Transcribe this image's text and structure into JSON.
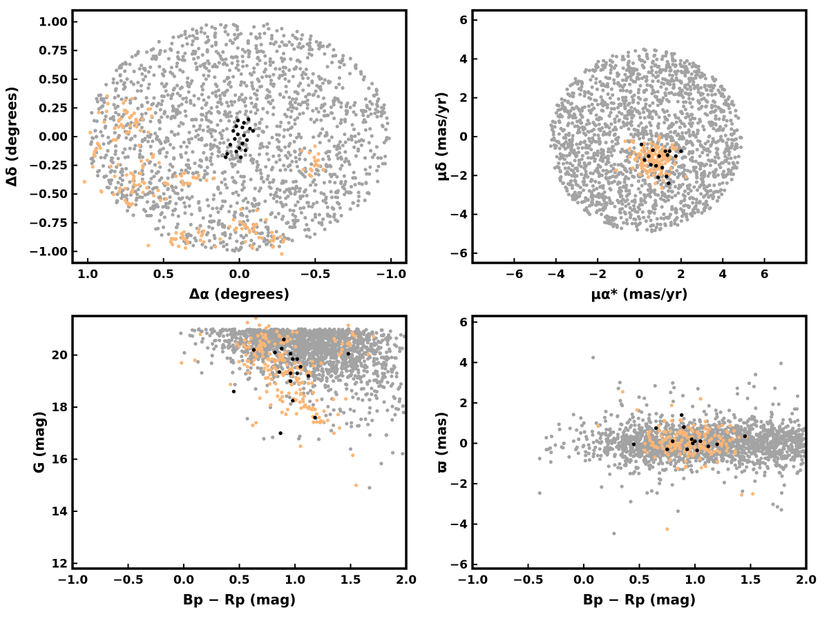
{
  "colors": {
    "field": "#a3a3a3",
    "members": "#fdb676",
    "cluster": "#000000"
  },
  "chart_data": [
    {
      "id": "sky",
      "type": "scatter",
      "xlabel": "Δα (degrees)",
      "ylabel": "Δδ (degrees)",
      "xlim": [
        1.1,
        -1.1
      ],
      "ylim": [
        -1.1,
        1.1
      ],
      "xticks": [
        1.0,
        0.5,
        0.0,
        -0.5,
        -1.0
      ],
      "yticks": [
        -1.0,
        -0.75,
        -0.5,
        -0.25,
        0.0,
        0.25,
        0.5,
        0.75,
        1.0
      ],
      "xtick_labels": [
        "1.0",
        "0.5",
        "0.0",
        "−0.5",
        "−1.0"
      ],
      "ytick_labels": [
        "−1.00",
        "−0.75",
        "−0.50",
        "−0.25",
        "0.00",
        "0.25",
        "0.50",
        "0.75",
        "1.00"
      ],
      "field": {
        "n": 1700,
        "shape": "disk",
        "center": [
          0.0,
          0.0
        ],
        "radius": [
          1.0,
          1.0
        ]
      },
      "members": {
        "n": 190,
        "clumps": [
          {
            "center": [
              0.72,
              0.17
            ],
            "sd": [
              0.1,
              0.09
            ],
            "n": 35
          },
          {
            "center": [
              0.93,
              -0.08
            ],
            "sd": [
              0.03,
              0.1
            ],
            "n": 10
          },
          {
            "center": [
              0.7,
              -0.38
            ],
            "sd": [
              0.1,
              0.15
            ],
            "n": 45
          },
          {
            "center": [
              0.35,
              -0.38
            ],
            "sd": [
              0.1,
              0.06
            ],
            "n": 20
          },
          {
            "center": [
              0.35,
              -0.88
            ],
            "sd": [
              0.08,
              0.05
            ],
            "n": 25
          },
          {
            "center": [
              -0.05,
              -0.83
            ],
            "sd": [
              0.08,
              0.07
            ],
            "n": 25
          },
          {
            "center": [
              -0.2,
              -0.92
            ],
            "sd": [
              0.06,
              0.04
            ],
            "n": 12
          },
          {
            "center": [
              -0.48,
              -0.18
            ],
            "sd": [
              0.04,
              0.1
            ],
            "n": 18
          }
        ]
      },
      "cluster": {
        "points": [
          [
            0.01,
            0.14
          ],
          [
            -0.03,
            0.12
          ],
          [
            -0.06,
            0.15
          ],
          [
            0.02,
            0.09
          ],
          [
            -0.02,
            0.08
          ],
          [
            -0.07,
            0.07
          ],
          [
            -0.09,
            0.05
          ],
          [
            0.04,
            0.05
          ],
          [
            0.01,
            0.02
          ],
          [
            -0.03,
            0.01
          ],
          [
            -0.05,
            -0.03
          ],
          [
            0.03,
            -0.02
          ],
          [
            0.06,
            -0.07
          ],
          [
            0.0,
            -0.1
          ],
          [
            -0.04,
            -0.12
          ],
          [
            0.08,
            -0.15
          ],
          [
            0.09,
            -0.18
          ],
          [
            -0.02,
            -0.06
          ],
          [
            0.02,
            -0.13
          ],
          [
            -0.01,
            -0.18
          ]
        ]
      }
    },
    {
      "id": "pm",
      "type": "scatter",
      "xlabel": "μα* (mas/yr)",
      "ylabel": "μδ (mas/yr)",
      "xlim": [
        -8,
        8
      ],
      "ylim": [
        -6.5,
        6.5
      ],
      "xticks": [
        -6,
        -4,
        -2,
        0,
        2,
        4,
        6
      ],
      "yticks": [
        -6,
        -4,
        -2,
        0,
        2,
        4,
        6
      ],
      "xtick_labels": [
        "−6",
        "−4",
        "−2",
        "0",
        "2",
        "4",
        "6"
      ],
      "ytick_labels": [
        "−6",
        "−4",
        "−2",
        "0",
        "2",
        "4",
        "6"
      ],
      "field": {
        "n": 1800,
        "shape": "disk",
        "center": [
          0.3,
          -0.2
        ],
        "radius": [
          4.6,
          4.7
        ],
        "clip": [
          null,
          5.0,
          -4.95,
          null
        ]
      },
      "members": {
        "n": 140,
        "clumps": [
          {
            "center": [
              0.8,
              -1.2
            ],
            "sd": [
              0.55,
              0.55
            ],
            "n": 140
          }
        ]
      },
      "cluster": {
        "points": [
          [
            0.1,
            -0.4
          ],
          [
            0.65,
            -0.7
          ],
          [
            1.25,
            -0.75
          ],
          [
            1.45,
            -0.75
          ],
          [
            1.35,
            -0.95
          ],
          [
            2.0,
            -0.75
          ],
          [
            0.25,
            -1.2
          ],
          [
            1.75,
            -1.0
          ],
          [
            0.55,
            -1.45
          ],
          [
            0.8,
            -1.5
          ],
          [
            1.1,
            -1.6
          ],
          [
            1.3,
            -2.05
          ],
          [
            0.9,
            -2.1
          ],
          [
            1.4,
            -2.4
          ],
          [
            0.45,
            -1.0
          ],
          [
            0.95,
            -1.0
          ]
        ]
      }
    },
    {
      "id": "cmd",
      "type": "scatter",
      "xlabel": "Bp − Rp (mag)",
      "ylabel": "G (mag)",
      "xlim": [
        -1.0,
        2.0
      ],
      "ylim": [
        11.8,
        21.5
      ],
      "y_inverted": false,
      "xticks": [
        -1.0,
        -0.5,
        0.0,
        0.5,
        1.0,
        1.5,
        2.0
      ],
      "yticks": [
        12,
        14,
        16,
        18,
        20
      ],
      "xtick_labels": [
        "−1.0",
        "−0.5",
        "0.0",
        "0.5",
        "1.0",
        "1.5",
        "2.0"
      ],
      "ytick_labels": [
        "12",
        "14",
        "16",
        "18",
        "20"
      ],
      "field": {
        "n": 1800,
        "shape": "cmd",
        "clip": [
          null,
          2.05,
          null,
          21.0
        ]
      },
      "members": {
        "n": 190,
        "clumps": [
          {
            "center": [
              0.75,
              20.2
            ],
            "sd": [
              0.14,
              0.45
            ],
            "n": 80
          },
          {
            "center": [
              1.0,
              19.0
            ],
            "sd": [
              0.14,
              0.6
            ],
            "n": 70
          },
          {
            "center": [
              1.15,
              17.8
            ],
            "sd": [
              0.12,
              0.5
            ],
            "n": 25
          },
          {
            "center": [
              1.45,
              20.5
            ],
            "sd": [
              0.12,
              0.3
            ],
            "n": 15
          }
        ],
        "extra": [
          [
            1.55,
            15.0
          ],
          [
            1.52,
            16.15
          ],
          [
            1.35,
            17.0
          ],
          [
            1.4,
            17.2
          ],
          [
            1.05,
            16.5
          ],
          [
            0.65,
            17.4
          ],
          [
            0.62,
            17.3
          ],
          [
            0.1,
            19.8
          ],
          [
            0.15,
            20.8
          ],
          [
            -0.02,
            19.7
          ]
        ]
      },
      "cluster": {
        "points": [
          [
            0.45,
            18.6
          ],
          [
            0.63,
            20.2
          ],
          [
            0.82,
            20.1
          ],
          [
            0.88,
            20.25
          ],
          [
            0.9,
            20.6
          ],
          [
            0.96,
            20.05
          ],
          [
            0.98,
            19.85
          ],
          [
            1.02,
            19.85
          ],
          [
            1.05,
            19.55
          ],
          [
            0.86,
            19.35
          ],
          [
            0.96,
            19.3
          ],
          [
            1.02,
            19.3
          ],
          [
            1.12,
            19.2
          ],
          [
            0.96,
            19.0
          ],
          [
            0.98,
            18.25
          ],
          [
            1.18,
            17.6
          ],
          [
            0.87,
            17.0
          ],
          [
            1.48,
            20.05
          ]
        ]
      }
    },
    {
      "id": "parallax",
      "type": "scatter",
      "xlabel": "Bp − Rp (mag)",
      "ylabel": "ϖ (mas)",
      "xlim": [
        -1.0,
        2.0
      ],
      "ylim": [
        -6.2,
        6.3
      ],
      "xticks": [
        -1.0,
        -0.5,
        0.0,
        0.5,
        1.0,
        1.5,
        2.0
      ],
      "yticks": [
        -6,
        -4,
        -2,
        0,
        2,
        4,
        6
      ],
      "xtick_labels": [
        "−1.0",
        "−0.5",
        "0.0",
        "0.5",
        "1.0",
        "1.5",
        "2.0"
      ],
      "ytick_labels": [
        "−6",
        "−4",
        "−2",
        "0",
        "2",
        "4",
        "6"
      ],
      "field": {
        "n": 1800,
        "shape": "plx",
        "clip": [
          null,
          2.05,
          null,
          null
        ]
      },
      "members": {
        "n": 170,
        "clumps": [
          {
            "center": [
              0.95,
              0.05
            ],
            "sd": [
              0.22,
              0.45
            ],
            "n": 170
          }
        ],
        "extra": [
          [
            0.35,
            2.55
          ],
          [
            0.75,
            -4.25
          ],
          [
            1.05,
            2.2
          ],
          [
            1.42,
            -2.55
          ],
          [
            1.52,
            -2.5
          ],
          [
            0.13,
            0.85
          ],
          [
            0.48,
            1.65
          ]
        ]
      },
      "cluster": {
        "points": [
          [
            0.45,
            -0.05
          ],
          [
            0.65,
            0.75
          ],
          [
            0.75,
            -0.3
          ],
          [
            0.8,
            0.1
          ],
          [
            0.88,
            1.4
          ],
          [
            0.9,
            0.8
          ],
          [
            0.93,
            -0.3
          ],
          [
            0.97,
            0.2
          ],
          [
            1.0,
            0.1
          ],
          [
            1.02,
            -0.35
          ],
          [
            1.05,
            0.1
          ],
          [
            1.12,
            -0.15
          ],
          [
            1.2,
            -0.05
          ],
          [
            1.45,
            0.35
          ],
          [
            0.98,
            0.0
          ]
        ]
      }
    }
  ]
}
